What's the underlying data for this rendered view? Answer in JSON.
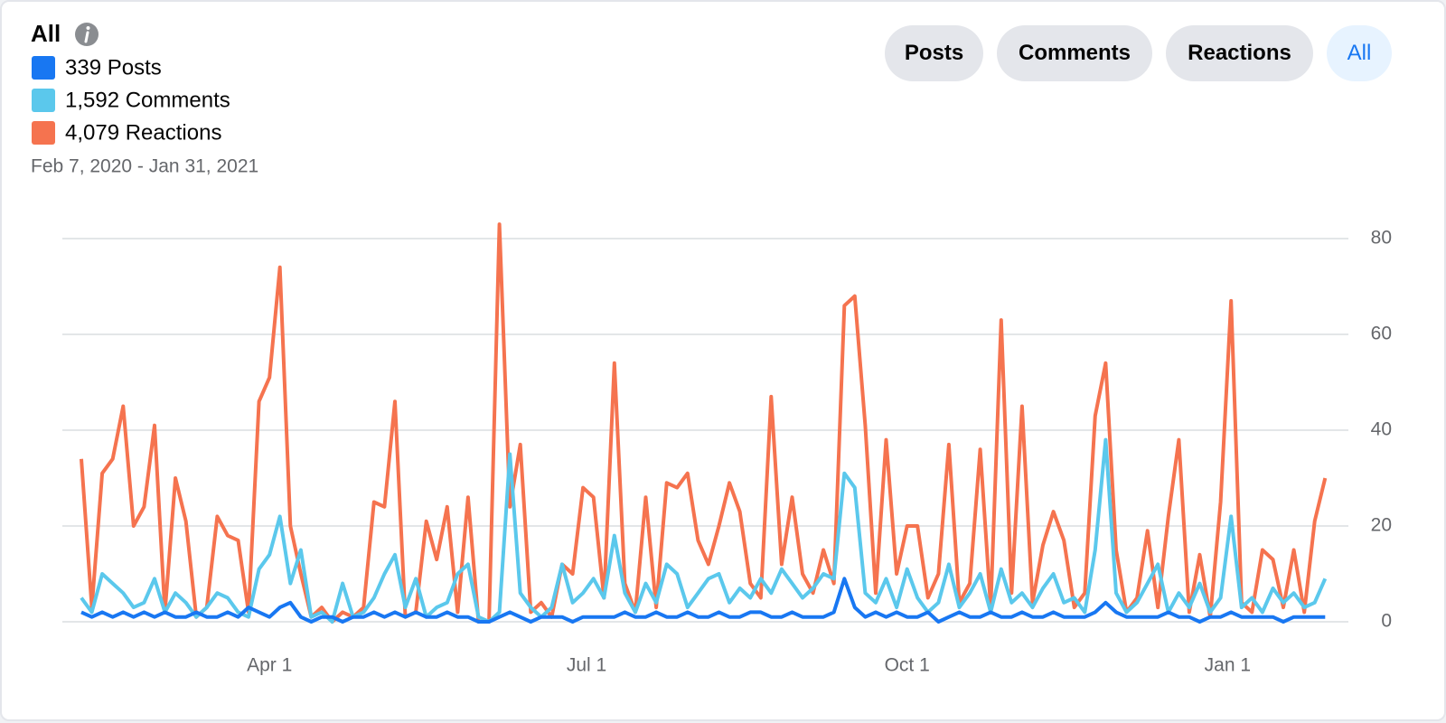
{
  "chart_data": {
    "type": "line",
    "title": "All",
    "subtitle": "Feb 7, 2020 - Jan 31, 2021",
    "buttons": [
      "Posts",
      "Comments",
      "Reactions",
      "All"
    ],
    "x": [
      "2020-02-07",
      "2020-02-10",
      "2020-02-13",
      "2020-02-16",
      "2020-02-19",
      "2020-02-22",
      "2020-02-25",
      "2020-02-28",
      "2020-03-02",
      "2020-03-05",
      "2020-03-08",
      "2020-03-11",
      "2020-03-14",
      "2020-03-17",
      "2020-03-20",
      "2020-03-23",
      "2020-03-26",
      "2020-03-29",
      "2020-04-01",
      "2020-04-04",
      "2020-04-07",
      "2020-04-10",
      "2020-04-13",
      "2020-04-16",
      "2020-04-19",
      "2020-04-22",
      "2020-04-25",
      "2020-04-28",
      "2020-05-01",
      "2020-05-04",
      "2020-05-07",
      "2020-05-10",
      "2020-05-13",
      "2020-05-16",
      "2020-05-19",
      "2020-05-22",
      "2020-05-25",
      "2020-05-28",
      "2020-05-31",
      "2020-06-03",
      "2020-06-06",
      "2020-06-09",
      "2020-06-12",
      "2020-06-15",
      "2020-06-18",
      "2020-06-21",
      "2020-06-24",
      "2020-06-27",
      "2020-06-30",
      "2020-07-03",
      "2020-07-06",
      "2020-07-09",
      "2020-07-12",
      "2020-07-15",
      "2020-07-18",
      "2020-07-21",
      "2020-07-24",
      "2020-07-27",
      "2020-07-30",
      "2020-08-02",
      "2020-08-05",
      "2020-08-08",
      "2020-08-11",
      "2020-08-14",
      "2020-08-17",
      "2020-08-20",
      "2020-08-23",
      "2020-08-26",
      "2020-08-29",
      "2020-09-01",
      "2020-09-04",
      "2020-09-07",
      "2020-09-10",
      "2020-09-13",
      "2020-09-16",
      "2020-09-19",
      "2020-09-22",
      "2020-09-25",
      "2020-09-28",
      "2020-10-01",
      "2020-10-04",
      "2020-10-07",
      "2020-10-10",
      "2020-10-13",
      "2020-10-16",
      "2020-10-19",
      "2020-10-22",
      "2020-10-25",
      "2020-10-28",
      "2020-10-31",
      "2020-11-03",
      "2020-11-06",
      "2020-11-09",
      "2020-11-12",
      "2020-11-15",
      "2020-11-18",
      "2020-11-21",
      "2020-11-24",
      "2020-11-27",
      "2020-11-30",
      "2020-12-03",
      "2020-12-06",
      "2020-12-09",
      "2020-12-12",
      "2020-12-15",
      "2020-12-18",
      "2020-12-21",
      "2020-12-24",
      "2020-12-27",
      "2020-12-30",
      "2021-01-02",
      "2021-01-05",
      "2021-01-08",
      "2021-01-11",
      "2021-01-14",
      "2021-01-17",
      "2021-01-20",
      "2021-01-23",
      "2021-01-26",
      "2021-01-29"
    ],
    "series": [
      {
        "name": "339 Posts",
        "color": "#1877f2",
        "values": [
          2,
          1,
          2,
          1,
          2,
          1,
          2,
          1,
          2,
          1,
          1,
          2,
          1,
          1,
          2,
          1,
          3,
          2,
          1,
          3,
          4,
          1,
          0,
          1,
          1,
          0,
          1,
          1,
          2,
          1,
          2,
          1,
          2,
          1,
          1,
          2,
          1,
          1,
          0,
          0,
          1,
          2,
          1,
          0,
          1,
          1,
          1,
          0,
          1,
          1,
          1,
          1,
          2,
          1,
          1,
          2,
          1,
          1,
          2,
          1,
          1,
          2,
          1,
          1,
          2,
          2,
          1,
          1,
          2,
          1,
          1,
          1,
          2,
          9,
          3,
          1,
          2,
          1,
          2,
          1,
          1,
          2,
          0,
          1,
          2,
          1,
          1,
          2,
          1,
          1,
          2,
          1,
          1,
          2,
          1,
          1,
          1,
          2,
          4,
          2,
          1,
          1,
          1,
          1,
          2,
          1,
          1,
          0,
          1,
          1,
          2,
          1,
          1,
          1,
          1,
          0,
          1,
          1,
          1,
          1
        ]
      },
      {
        "name": "1,592 Comments",
        "color": "#5bc8ec",
        "values": [
          5,
          2,
          10,
          8,
          6,
          3,
          4,
          9,
          2,
          6,
          4,
          1,
          3,
          6,
          5,
          2,
          1,
          11,
          14,
          22,
          8,
          15,
          1,
          2,
          0,
          8,
          1,
          2,
          5,
          10,
          14,
          3,
          9,
          1,
          3,
          4,
          10,
          12,
          1,
          0,
          2,
          35,
          6,
          3,
          1,
          3,
          12,
          4,
          6,
          9,
          5,
          18,
          6,
          2,
          8,
          4,
          12,
          10,
          3,
          6,
          9,
          10,
          4,
          7,
          5,
          9,
          6,
          11,
          8,
          5,
          7,
          10,
          9,
          31,
          28,
          6,
          4,
          9,
          3,
          11,
          5,
          2,
          4,
          12,
          3,
          6,
          10,
          2,
          11,
          4,
          6,
          3,
          7,
          10,
          4,
          5,
          2,
          15,
          38,
          6,
          2,
          4,
          8,
          12,
          2,
          6,
          3,
          8,
          2,
          5,
          22,
          3,
          5,
          2,
          7,
          4,
          6,
          3,
          4,
          9
        ]
      },
      {
        "name": "4,079 Reactions",
        "color": "#f5734f",
        "values": [
          34,
          3,
          31,
          34,
          45,
          20,
          24,
          41,
          2,
          30,
          21,
          1,
          3,
          22,
          18,
          17,
          2,
          46,
          51,
          74,
          20,
          10,
          1,
          3,
          0,
          2,
          1,
          3,
          25,
          24,
          46,
          1,
          2,
          21,
          13,
          24,
          2,
          26,
          0,
          0,
          83,
          24,
          37,
          2,
          4,
          1,
          12,
          10,
          28,
          26,
          5,
          54,
          8,
          2,
          26,
          3,
          29,
          28,
          31,
          17,
          12,
          20,
          29,
          23,
          8,
          5,
          47,
          12,
          26,
          10,
          6,
          15,
          8,
          66,
          68,
          41,
          6,
          38,
          10,
          20,
          20,
          5,
          10,
          37,
          4,
          8,
          36,
          3,
          63,
          6,
          45,
          4,
          16,
          23,
          17,
          3,
          6,
          43,
          54,
          15,
          2,
          5,
          19,
          3,
          22,
          38,
          2,
          14,
          1,
          25,
          67,
          4,
          2,
          15,
          13,
          3,
          15,
          2,
          21,
          30
        ]
      }
    ],
    "xlim": [
      "2020-02-07",
      "2021-01-31"
    ],
    "xticks": [
      {
        "value": "2020-04-01",
        "label": "Apr 1"
      },
      {
        "value": "2020-07-01",
        "label": "Jul 1"
      },
      {
        "value": "2020-10-01",
        "label": "Oct 1"
      },
      {
        "value": "2021-01-01",
        "label": "Jan 1"
      }
    ],
    "ylim": [
      0,
      80
    ],
    "yticks": [
      0,
      20,
      40,
      60,
      80
    ],
    "grid": true
  }
}
